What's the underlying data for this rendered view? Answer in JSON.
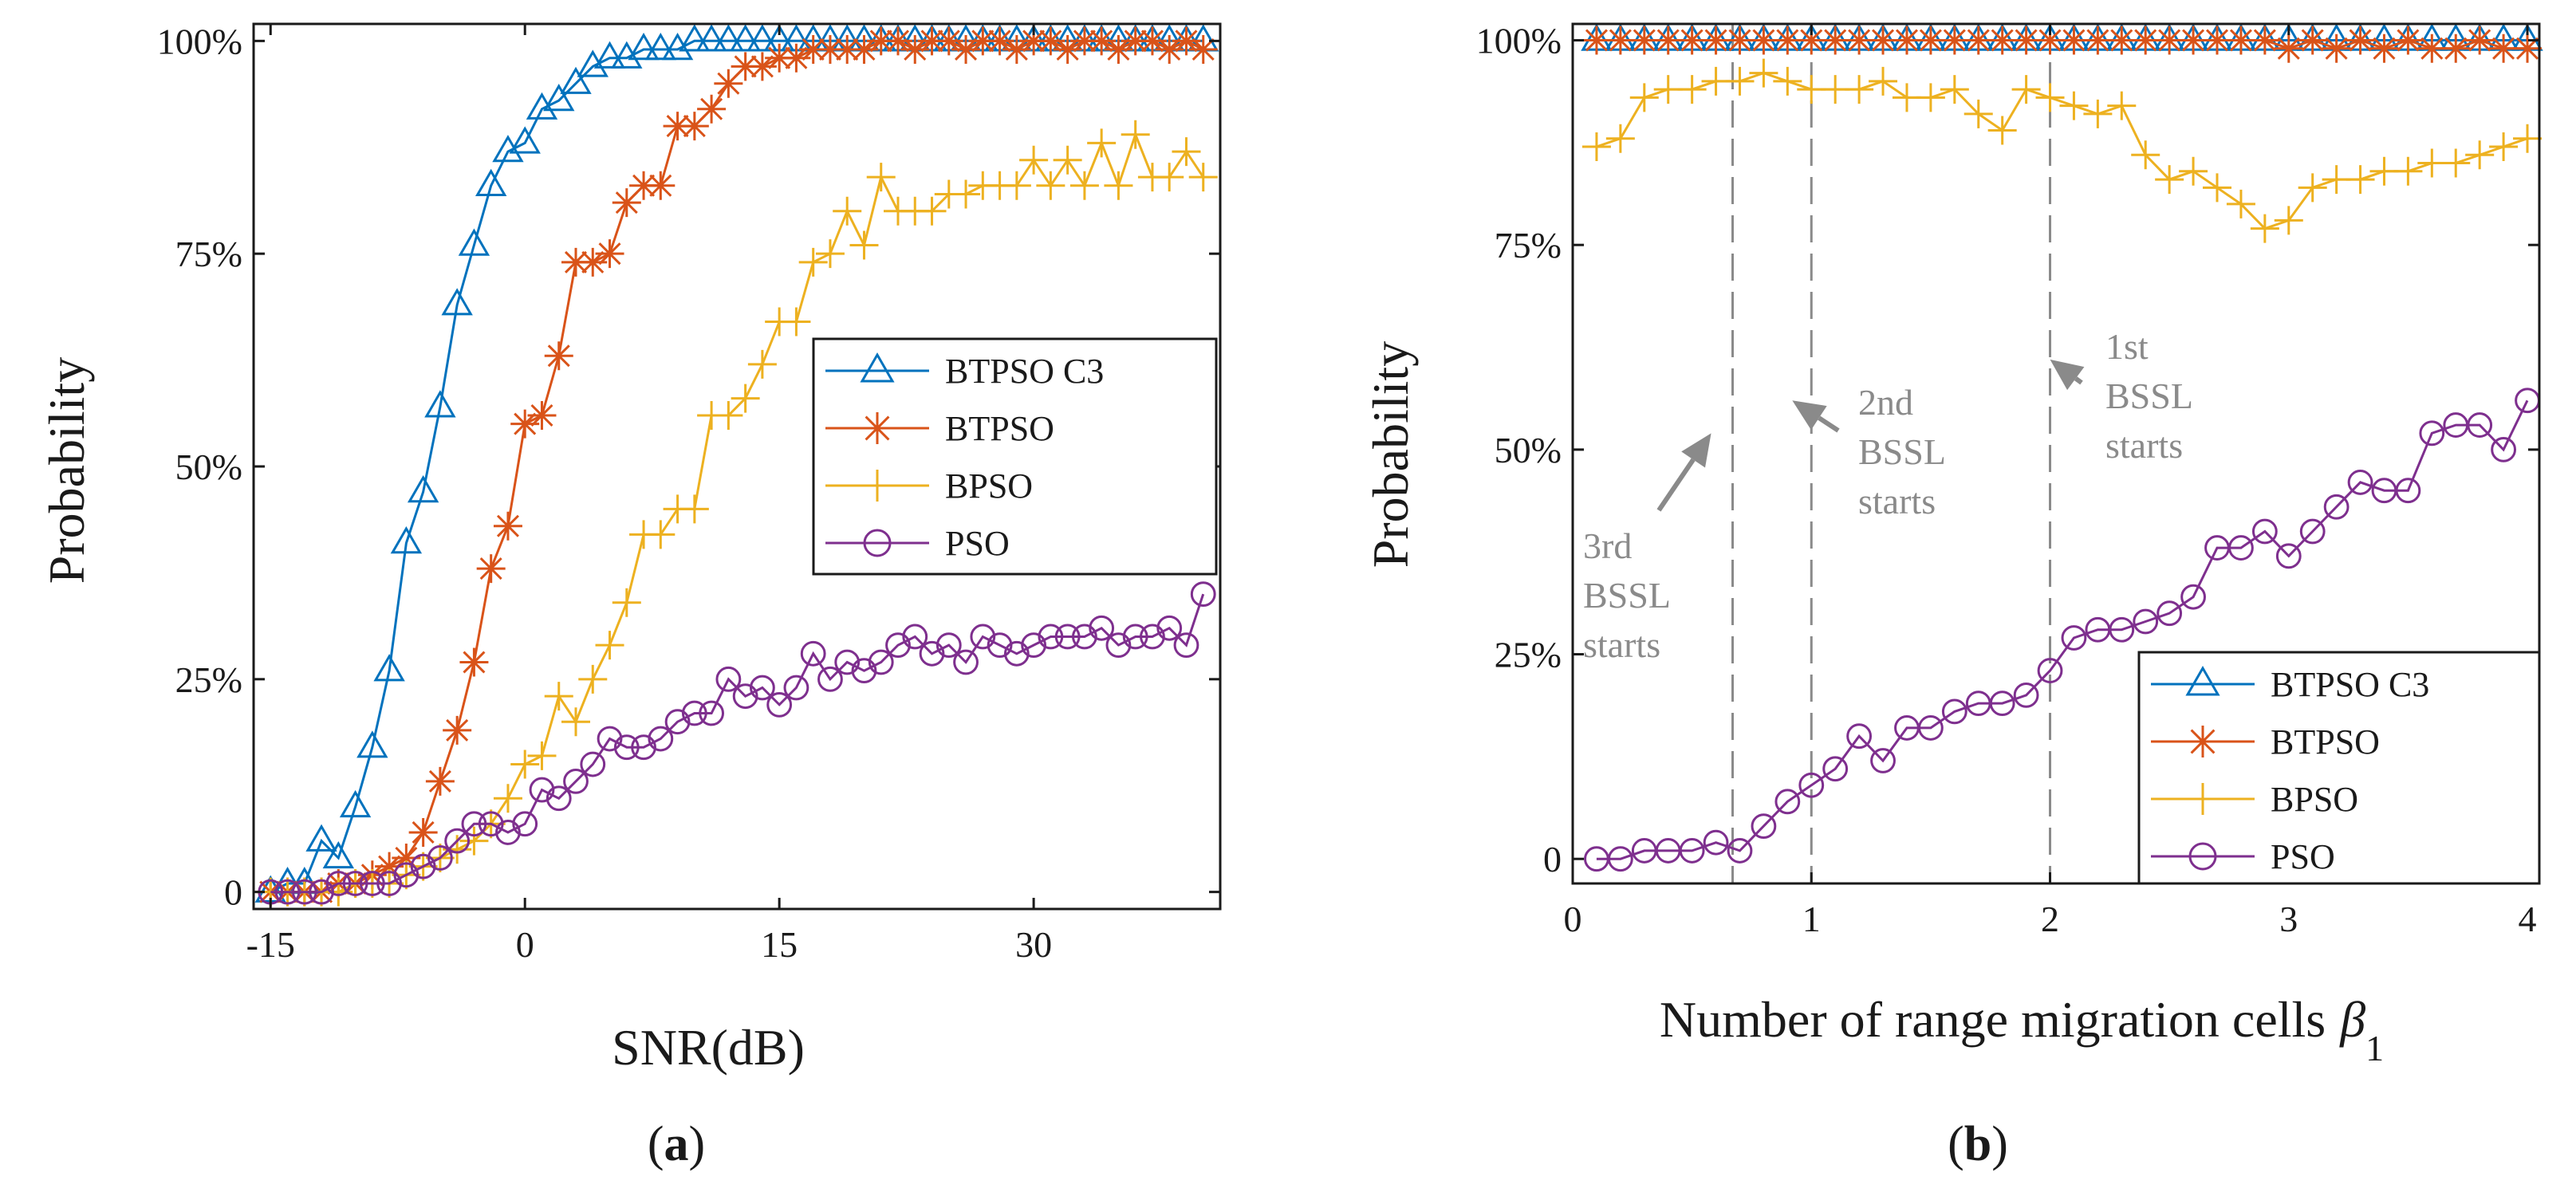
{
  "colors": {
    "btpso_c3": "#0072BD",
    "btpso": "#D95319",
    "bpso": "#EDB120",
    "pso": "#7E2F8E",
    "annotation": "#8a8a8a"
  },
  "legend_entries": [
    "BTPSO C3",
    "BTPSO",
    "BPSO",
    "PSO"
  ],
  "panel_a": {
    "caption_prefix": "(",
    "caption_letter": "a",
    "caption_suffix": ")"
  },
  "panel_b": {
    "caption_prefix": "(",
    "caption_letter": "b",
    "caption_suffix": ")",
    "annotations": [
      {
        "lines": [
          "3rd",
          "BSSL",
          "starts"
        ]
      },
      {
        "lines": [
          "2nd",
          "BSSL",
          "starts"
        ]
      },
      {
        "lines": [
          "1st",
          "BSSL",
          "starts"
        ]
      }
    ]
  },
  "chart_data": [
    {
      "type": "line",
      "title": "",
      "xlabel": "SNR(dB)",
      "ylabel": "Probability",
      "xlim": [
        -16,
        41
      ],
      "ylim": [
        -2,
        102
      ],
      "xticks": [
        -15,
        0,
        15,
        30
      ],
      "xtick_labels": [
        "-15",
        "0",
        "15",
        "30"
      ],
      "yticks": [
        0,
        25,
        50,
        75,
        100
      ],
      "ytick_labels": [
        "0",
        "25%",
        "50%",
        "75%",
        "100%"
      ],
      "legend_position": "center-right",
      "grid": false,
      "series": [
        {
          "name": "BTPSO C3",
          "marker": "triangle",
          "x": [
            -15,
            -14,
            -13,
            -12,
            -11,
            -10,
            -9,
            -8,
            -7,
            -6,
            -5,
            -4,
            -3,
            -2,
            -1,
            0,
            1,
            2,
            3,
            4,
            5,
            6,
            7,
            8,
            9,
            10,
            11,
            12,
            13,
            14,
            15,
            16,
            17,
            18,
            19,
            20,
            21,
            22,
            23,
            24,
            25,
            26,
            27,
            28,
            29,
            30,
            31,
            32,
            33,
            34,
            35,
            36,
            37,
            38,
            39,
            40
          ],
          "y": [
            0,
            1,
            1,
            6,
            4,
            10,
            17,
            26,
            41,
            47,
            57,
            69,
            76,
            83,
            87,
            88,
            92,
            93,
            95,
            97,
            98,
            98,
            99,
            99,
            99,
            100,
            100,
            100,
            100,
            100,
            100,
            100,
            100,
            100,
            100,
            100,
            100,
            100,
            100,
            100,
            100,
            100,
            100,
            100,
            100,
            100,
            100,
            100,
            100,
            100,
            100,
            100,
            100,
            100,
            100,
            100
          ]
        },
        {
          "name": "BTPSO",
          "marker": "star",
          "x": [
            -15,
            -14,
            -13,
            -12,
            -11,
            -10,
            -9,
            -8,
            -7,
            -6,
            -5,
            -4,
            -3,
            -2,
            -1,
            0,
            1,
            2,
            3,
            4,
            5,
            6,
            7,
            8,
            9,
            10,
            11,
            12,
            13,
            14,
            15,
            16,
            17,
            18,
            19,
            20,
            21,
            22,
            23,
            24,
            25,
            26,
            27,
            28,
            29,
            30,
            31,
            32,
            33,
            34,
            35,
            36,
            37,
            38,
            39,
            40
          ],
          "y": [
            0,
            0,
            0,
            0,
            1,
            1,
            2,
            3,
            4,
            7,
            13,
            19,
            27,
            38,
            43,
            55,
            56,
            63,
            74,
            74,
            75,
            81,
            83,
            83,
            90,
            90,
            92,
            95,
            97,
            97,
            98,
            98,
            99,
            99,
            99,
            99,
            100,
            100,
            99,
            100,
            100,
            99,
            100,
            100,
            99,
            100,
            100,
            99,
            100,
            100,
            99,
            100,
            100,
            99,
            100,
            99
          ]
        },
        {
          "name": "BPSO",
          "marker": "plus",
          "x": [
            -15,
            -14,
            -13,
            -12,
            -11,
            -10,
            -9,
            -8,
            -7,
            -6,
            -5,
            -4,
            -3,
            -2,
            -1,
            0,
            1,
            2,
            3,
            4,
            5,
            6,
            7,
            8,
            9,
            10,
            11,
            12,
            13,
            14,
            15,
            16,
            17,
            18,
            19,
            20,
            21,
            22,
            23,
            24,
            25,
            26,
            27,
            28,
            29,
            30,
            31,
            32,
            33,
            34,
            35,
            36,
            37,
            38,
            39,
            40
          ],
          "y": [
            0,
            0,
            0,
            0,
            0,
            1,
            1,
            1,
            2,
            3,
            4,
            5,
            6,
            8,
            11,
            15,
            16,
            23,
            20,
            25,
            29,
            34,
            42,
            42,
            45,
            45,
            56,
            56,
            58,
            62,
            67,
            67,
            74,
            75,
            80,
            76,
            84,
            80,
            80,
            80,
            82,
            82,
            83,
            83,
            83,
            86,
            83,
            86,
            83,
            88,
            83,
            89,
            84,
            84,
            87,
            84
          ]
        },
        {
          "name": "PSO",
          "marker": "circle",
          "x": [
            -15,
            -14,
            -13,
            -12,
            -11,
            -10,
            -9,
            -8,
            -7,
            -6,
            -5,
            -4,
            -3,
            -2,
            -1,
            0,
            1,
            2,
            3,
            4,
            5,
            6,
            7,
            8,
            9,
            10,
            11,
            12,
            13,
            14,
            15,
            16,
            17,
            18,
            19,
            20,
            21,
            22,
            23,
            24,
            25,
            26,
            27,
            28,
            29,
            30,
            31,
            32,
            33,
            34,
            35,
            36,
            37,
            38,
            39,
            40
          ],
          "y": [
            0,
            0,
            0,
            0,
            1,
            1,
            1,
            1,
            2,
            3,
            4,
            6,
            8,
            8,
            7,
            8,
            12,
            11,
            13,
            15,
            18,
            17,
            17,
            18,
            20,
            21,
            21,
            25,
            23,
            24,
            22,
            24,
            28,
            25,
            27,
            26,
            27,
            29,
            30,
            28,
            29,
            27,
            30,
            29,
            28,
            29,
            30,
            30,
            30,
            31,
            29,
            30,
            30,
            31,
            29,
            35
          ]
        }
      ]
    },
    {
      "type": "line",
      "title": "",
      "xlabel": "Number of range migration cells",
      "xlabel_symbol": "β",
      "xlabel_subscript": "1",
      "ylabel": "Probability",
      "xlim": [
        0,
        4.05
      ],
      "ylim": [
        -3,
        102
      ],
      "xticks": [
        0,
        1,
        2,
        3,
        4
      ],
      "xtick_labels": [
        "0",
        "1",
        "2",
        "3",
        "4"
      ],
      "yticks": [
        0,
        25,
        50,
        75,
        100
      ],
      "ytick_labels": [
        "0",
        "25%",
        "50%",
        "75%",
        "100%"
      ],
      "legend_position": "bottom-right",
      "grid": false,
      "reference_lines_x": [
        0.67,
        1.0,
        2.0
      ],
      "annotations": [
        {
          "label": "3rd BSSL starts",
          "arrow_to": [
            0.58,
            52
          ]
        },
        {
          "label": "2nd BSSL starts",
          "arrow_to": [
            0.92,
            56
          ]
        },
        {
          "label": "1st BSSL starts",
          "arrow_to": [
            2.0,
            61
          ]
        }
      ],
      "series": [
        {
          "name": "BTPSO C3",
          "marker": "triangle",
          "x": [
            0.1,
            0.2,
            0.3,
            0.4,
            0.5,
            0.6,
            0.7,
            0.8,
            0.9,
            1.0,
            1.1,
            1.2,
            1.3,
            1.4,
            1.5,
            1.6,
            1.7,
            1.8,
            1.9,
            2.0,
            2.1,
            2.2,
            2.3,
            2.4,
            2.5,
            2.6,
            2.7,
            2.8,
            2.9,
            3.0,
            3.1,
            3.2,
            3.3,
            3.4,
            3.5,
            3.6,
            3.7,
            3.8,
            3.9,
            4.0
          ],
          "y": [
            100,
            100,
            100,
            100,
            100,
            100,
            100,
            100,
            100,
            100,
            100,
            100,
            100,
            100,
            100,
            100,
            100,
            100,
            100,
            100,
            100,
            100,
            100,
            100,
            100,
            100,
            100,
            100,
            100,
            100,
            100,
            100,
            100,
            100,
            100,
            100,
            100,
            100,
            100,
            100
          ]
        },
        {
          "name": "BTPSO",
          "marker": "star",
          "x": [
            0.1,
            0.2,
            0.3,
            0.4,
            0.5,
            0.6,
            0.7,
            0.8,
            0.9,
            1.0,
            1.1,
            1.2,
            1.3,
            1.4,
            1.5,
            1.6,
            1.7,
            1.8,
            1.9,
            2.0,
            2.1,
            2.2,
            2.3,
            2.4,
            2.5,
            2.6,
            2.7,
            2.8,
            2.9,
            3.0,
            3.1,
            3.2,
            3.3,
            3.4,
            3.5,
            3.6,
            3.7,
            3.8,
            3.9,
            4.0
          ],
          "y": [
            100,
            100,
            100,
            100,
            100,
            100,
            100,
            100,
            100,
            100,
            100,
            100,
            100,
            100,
            100,
            100,
            100,
            100,
            100,
            100,
            100,
            100,
            100,
            100,
            100,
            100,
            100,
            100,
            100,
            99,
            100,
            99,
            100,
            99,
            100,
            99,
            99,
            100,
            99,
            99
          ]
        },
        {
          "name": "BPSO",
          "marker": "plus",
          "x": [
            0.1,
            0.2,
            0.3,
            0.4,
            0.5,
            0.6,
            0.7,
            0.8,
            0.9,
            1.0,
            1.1,
            1.2,
            1.3,
            1.4,
            1.5,
            1.6,
            1.7,
            1.8,
            1.9,
            2.0,
            2.1,
            2.2,
            2.3,
            2.4,
            2.5,
            2.6,
            2.7,
            2.8,
            2.9,
            3.0,
            3.1,
            3.2,
            3.3,
            3.4,
            3.5,
            3.6,
            3.7,
            3.8,
            3.9,
            4.0
          ],
          "y": [
            87,
            88,
            93,
            94,
            94,
            95,
            95,
            96,
            95,
            94,
            94,
            94,
            95,
            93,
            93,
            94,
            91,
            89,
            94,
            93,
            92,
            91,
            92,
            86,
            83,
            84,
            82,
            80,
            77,
            78,
            82,
            83,
            83,
            84,
            84,
            85,
            85,
            86,
            87,
            88
          ]
        },
        {
          "name": "PSO",
          "marker": "circle",
          "x": [
            0.1,
            0.2,
            0.3,
            0.4,
            0.5,
            0.6,
            0.7,
            0.8,
            0.9,
            1.0,
            1.1,
            1.2,
            1.3,
            1.4,
            1.5,
            1.6,
            1.7,
            1.8,
            1.9,
            2.0,
            2.1,
            2.2,
            2.3,
            2.4,
            2.5,
            2.6,
            2.7,
            2.8,
            2.9,
            3.0,
            3.1,
            3.2,
            3.3,
            3.4,
            3.5,
            3.6,
            3.7,
            3.8,
            3.9,
            4.0
          ],
          "y": [
            0,
            0,
            1,
            1,
            1,
            2,
            1,
            4,
            7,
            9,
            11,
            15,
            12,
            16,
            16,
            18,
            19,
            19,
            20,
            23,
            27,
            28,
            28,
            29,
            30,
            32,
            38,
            38,
            40,
            37,
            40,
            43,
            46,
            45,
            45,
            52,
            53,
            53,
            50,
            56
          ]
        }
      ]
    }
  ]
}
